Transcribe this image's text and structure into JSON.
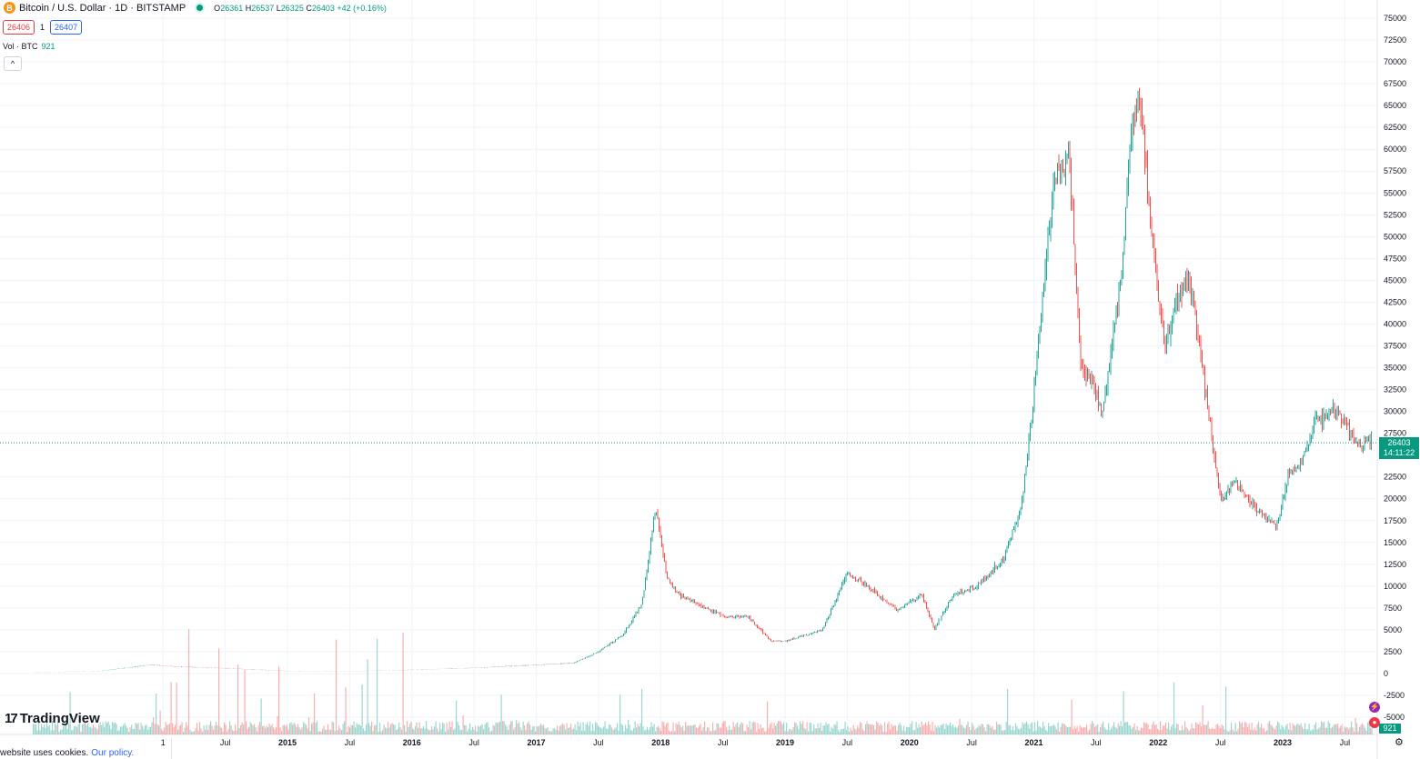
{
  "legend": {
    "symbol": "Bitcoin / U.S. Dollar · 1D · BITSTAMP",
    "btc_glyph": "B",
    "open_label": "O",
    "open": "26361",
    "high_label": "H",
    "high": "26537",
    "low_label": "L",
    "low": "26325",
    "close_label": "C",
    "close": "26403",
    "change": "+42 (+0.16%)"
  },
  "trade": {
    "bid": "26406",
    "spread": "1",
    "ask": "26407"
  },
  "volume": {
    "label": "Vol · BTC",
    "value": "921"
  },
  "collapse_glyph": "^",
  "logo": {
    "mark": "17",
    "name": "TradingView"
  },
  "cookie": {
    "text": "website uses cookies.",
    "link": "Our policy."
  },
  "price_tag": {
    "value": "26403",
    "countdown": "14:11:22"
  },
  "vol_tag": "921",
  "colors": {
    "up": "#26a69a",
    "down": "#ef5350",
    "grid": "#f0f3fa",
    "text": "#131722",
    "accent": "#089981"
  },
  "icons": [
    "bitcoin-icon",
    "live-dot-icon",
    "chevron-up-icon",
    "tradingview-logo-icon",
    "lightning-icon",
    "alert-icon",
    "settings-icon"
  ],
  "chart_data": {
    "type": "line",
    "title": "",
    "xlabel": "",
    "ylabel": "",
    "ylim": [
      -7500,
      76000
    ],
    "y_ticks": [
      75000,
      72500,
      70000,
      67500,
      65000,
      62500,
      60000,
      57500,
      55000,
      52500,
      50000,
      47500,
      45000,
      42500,
      40000,
      37500,
      35000,
      32500,
      30000,
      27500,
      22500,
      20000,
      17500,
      15000,
      12500,
      10000,
      7500,
      5000,
      2500,
      0,
      -2500,
      -5000
    ],
    "x_ticks": [
      "1",
      "Jul",
      "2015",
      "Jul",
      "2016",
      "Jul",
      "2017",
      "Jul",
      "2018",
      "Jul",
      "2019",
      "Jul",
      "2020",
      "Jul",
      "2021",
      "Jul",
      "2022",
      "Jul",
      "2023",
      "Jul"
    ],
    "x_tick_years": [
      2014.0,
      2014.5,
      2015.0,
      2015.5,
      2016.0,
      2016.5,
      2017.0,
      2017.5,
      2018.0,
      2018.5,
      2019.0,
      2019.5,
      2020.0,
      2020.5,
      2021.0,
      2021.5,
      2022.0,
      2022.5,
      2023.0,
      2023.5
    ],
    "series": [
      {
        "x": [
          2012.9,
          2013.5,
          2013.9,
          2014.1,
          2014.5,
          2015.0,
          2015.5,
          2016.0,
          2016.5,
          2017.0,
          2017.3,
          2017.5,
          2017.7,
          2017.85,
          2017.96,
          2018.05,
          2018.15,
          2018.3,
          2018.5,
          2018.7,
          2018.88,
          2019.0,
          2019.3,
          2019.5,
          2019.7,
          2019.9,
          2020.1,
          2020.2,
          2020.35,
          2020.55,
          2020.75,
          2020.9,
          2020.98,
          2021.05,
          2021.15,
          2021.28,
          2021.38,
          2021.48,
          2021.55,
          2021.7,
          2021.78,
          2021.86,
          2021.95,
          2022.05,
          2022.15,
          2022.25,
          2022.33,
          2022.4,
          2022.5,
          2022.62,
          2022.75,
          2022.85,
          2022.95,
          2023.05,
          2023.15,
          2023.25,
          2023.4,
          2023.5,
          2023.6,
          2023.7
        ],
        "values": [
          100,
          300,
          1000,
          800,
          600,
          300,
          270,
          430,
          650,
          1000,
          1200,
          2500,
          4500,
          8000,
          19000,
          11000,
          9000,
          8000,
          6500,
          6500,
          3800,
          3700,
          5000,
          11500,
          9500,
          7300,
          9000,
          5000,
          9000,
          10000,
          13000,
          19000,
          29000,
          40000,
          55000,
          60000,
          35000,
          33000,
          30000,
          45000,
          62000,
          66000,
          49000,
          37000,
          43000,
          45000,
          38000,
          30000,
          20000,
          22000,
          19500,
          18000,
          16500,
          23000,
          24000,
          28500,
          30000,
          29000,
          26000,
          26403
        ]
      }
    ]
  }
}
